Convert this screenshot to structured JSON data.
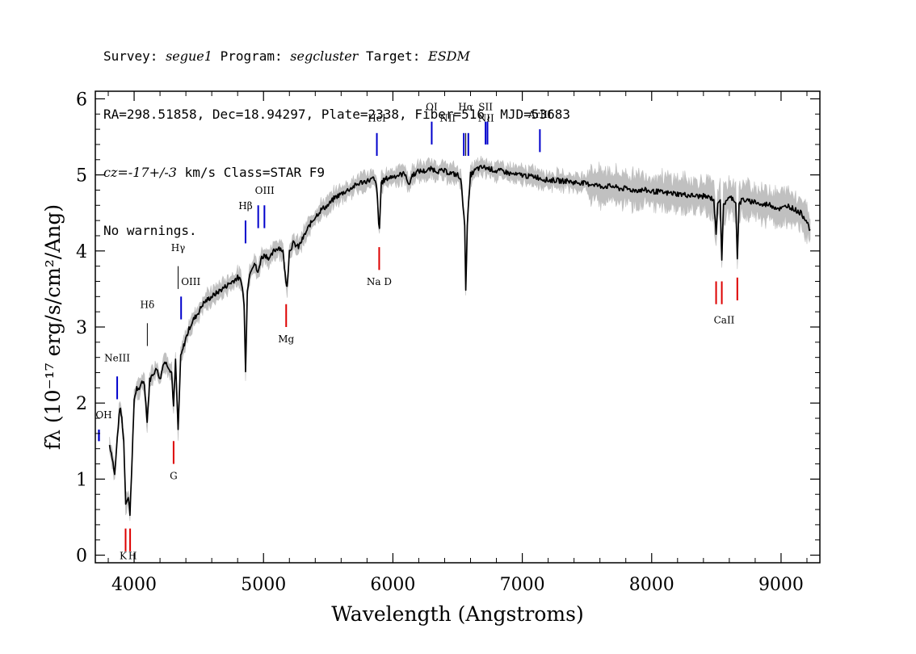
{
  "header": {
    "line1": {
      "p1": "Survey: ",
      "survey": "segue1",
      "p2": " Program: ",
      "program": "segcluster",
      "p3": " Target: ",
      "target": "ESDM"
    },
    "line2": "RA=298.51858, Dec=18.94297, Plate=2338, Fiber=516, MJD=53683",
    "line3": {
      "cz": "cz=-17+/-3",
      "rest": " km/s Class=STAR F9"
    },
    "line4": "No warnings."
  },
  "chart_data": {
    "type": "line",
    "xlabel": "Wavelength (Angstroms)",
    "ylabel": "fλ (10⁻¹⁷ erg/s/cm²/Ang)",
    "xlim": [
      3700,
      9300
    ],
    "ylim": [
      -0.1,
      6.1
    ],
    "x_ticks": [
      4000,
      5000,
      6000,
      7000,
      8000,
      9000
    ],
    "y_ticks": [
      0,
      1,
      2,
      3,
      4,
      5,
      6
    ],
    "grid": false,
    "colors": {
      "spectrum": "#000000",
      "error_band": "#c0c0c0",
      "emission": "#0000cc",
      "absorption": "#dd0000",
      "other": "#000000"
    },
    "series": [
      {
        "points": [
          [
            3810,
            1.45
          ],
          [
            3830,
            1.3
          ],
          [
            3850,
            1.05
          ],
          [
            3870,
            1.55
          ],
          [
            3890,
            1.95
          ],
          [
            3905,
            1.8
          ],
          [
            3920,
            1.5
          ],
          [
            3935,
            0.7
          ],
          [
            3955,
            0.75
          ],
          [
            3968,
            0.55
          ],
          [
            3985,
            1.3
          ],
          [
            4000,
            2.05
          ],
          [
            4020,
            2.2
          ],
          [
            4040,
            2.15
          ],
          [
            4060,
            2.3
          ],
          [
            4080,
            2.25
          ],
          [
            4101,
            1.75
          ],
          [
            4120,
            2.3
          ],
          [
            4150,
            2.4
          ],
          [
            4180,
            2.45
          ],
          [
            4200,
            2.3
          ],
          [
            4230,
            2.55
          ],
          [
            4260,
            2.5
          ],
          [
            4290,
            2.4
          ],
          [
            4305,
            1.95
          ],
          [
            4320,
            2.55
          ],
          [
            4340,
            1.65
          ],
          [
            4360,
            2.6
          ],
          [
            4383,
            2.75
          ],
          [
            4400,
            2.85
          ],
          [
            4430,
            3.0
          ],
          [
            4460,
            3.1
          ],
          [
            4500,
            3.2
          ],
          [
            4530,
            3.3
          ],
          [
            4560,
            3.35
          ],
          [
            4600,
            3.4
          ],
          [
            4640,
            3.45
          ],
          [
            4680,
            3.5
          ],
          [
            4720,
            3.55
          ],
          [
            4760,
            3.6
          ],
          [
            4800,
            3.65
          ],
          [
            4830,
            3.6
          ],
          [
            4850,
            3.3
          ],
          [
            4861,
            2.4
          ],
          [
            4875,
            3.5
          ],
          [
            4900,
            3.75
          ],
          [
            4930,
            3.85
          ],
          [
            4957,
            3.7
          ],
          [
            4980,
            3.9
          ],
          [
            5010,
            3.95
          ],
          [
            5050,
            3.9
          ],
          [
            5080,
            4.0
          ],
          [
            5120,
            4.05
          ],
          [
            5150,
            4.0
          ],
          [
            5172,
            3.6
          ],
          [
            5183,
            3.55
          ],
          [
            5200,
            4.0
          ],
          [
            5230,
            4.1
          ],
          [
            5270,
            4.05
          ],
          [
            5300,
            4.15
          ],
          [
            5330,
            4.25
          ],
          [
            5360,
            4.35
          ],
          [
            5400,
            4.45
          ],
          [
            5450,
            4.55
          ],
          [
            5500,
            4.6
          ],
          [
            5550,
            4.7
          ],
          [
            5600,
            4.75
          ],
          [
            5650,
            4.8
          ],
          [
            5700,
            4.85
          ],
          [
            5750,
            4.9
          ],
          [
            5800,
            4.92
          ],
          [
            5850,
            4.95
          ],
          [
            5875,
            4.85
          ],
          [
            5890,
            4.35
          ],
          [
            5896,
            4.3
          ],
          [
            5910,
            4.9
          ],
          [
            5950,
            4.95
          ],
          [
            6000,
            4.98
          ],
          [
            6050,
            5.0
          ],
          [
            6100,
            5.02
          ],
          [
            6120,
            4.85
          ],
          [
            6150,
            5.0
          ],
          [
            6200,
            5.05
          ],
          [
            6250,
            5.05
          ],
          [
            6300,
            5.08
          ],
          [
            6350,
            5.05
          ],
          [
            6400,
            5.05
          ],
          [
            6450,
            5.02
          ],
          [
            6500,
            5.0
          ],
          [
            6530,
            4.9
          ],
          [
            6555,
            4.3
          ],
          [
            6563,
            3.5
          ],
          [
            6575,
            4.35
          ],
          [
            6600,
            5.0
          ],
          [
            6650,
            5.08
          ],
          [
            6700,
            5.1
          ],
          [
            6750,
            5.08
          ],
          [
            6800,
            5.05
          ],
          [
            6850,
            5.05
          ],
          [
            6900,
            5.02
          ],
          [
            6950,
            5.0
          ],
          [
            7000,
            5.0
          ],
          [
            7050,
            4.98
          ],
          [
            7100,
            4.98
          ],
          [
            7150,
            4.95
          ],
          [
            7200,
            4.93
          ],
          [
            7250,
            4.93
          ],
          [
            7300,
            4.92
          ],
          [
            7350,
            4.92
          ],
          [
            7400,
            4.9
          ],
          [
            7450,
            4.9
          ],
          [
            7500,
            4.88
          ],
          [
            7550,
            4.88
          ],
          [
            7600,
            4.85
          ],
          [
            7650,
            4.85
          ],
          [
            7700,
            4.85
          ],
          [
            7750,
            4.82
          ],
          [
            7800,
            4.82
          ],
          [
            7850,
            4.8
          ],
          [
            7900,
            4.8
          ],
          [
            7950,
            4.8
          ],
          [
            8000,
            4.78
          ],
          [
            8050,
            4.78
          ],
          [
            8100,
            4.76
          ],
          [
            8150,
            4.76
          ],
          [
            8200,
            4.75
          ],
          [
            8250,
            4.74
          ],
          [
            8300,
            4.73
          ],
          [
            8350,
            4.72
          ],
          [
            8400,
            4.72
          ],
          [
            8450,
            4.7
          ],
          [
            8480,
            4.68
          ],
          [
            8498,
            4.2
          ],
          [
            8510,
            4.65
          ],
          [
            8530,
            4.68
          ],
          [
            8542,
            3.85
          ],
          [
            8555,
            4.6
          ],
          [
            8580,
            4.68
          ],
          [
            8620,
            4.7
          ],
          [
            8650,
            4.65
          ],
          [
            8662,
            3.9
          ],
          [
            8675,
            4.6
          ],
          [
            8700,
            4.68
          ],
          [
            8750,
            4.65
          ],
          [
            8800,
            4.65
          ],
          [
            8850,
            4.6
          ],
          [
            8900,
            4.62
          ],
          [
            8950,
            4.58
          ],
          [
            9000,
            4.55
          ],
          [
            9050,
            4.6
          ],
          [
            9100,
            4.55
          ],
          [
            9150,
            4.5
          ],
          [
            9200,
            4.4
          ],
          [
            9225,
            4.25
          ]
        ]
      }
    ],
    "lines": [
      {
        "label": "OH",
        "wave": 3727,
        "color": "blue",
        "y0": 1.5,
        "y1": 1.65,
        "label_y": 1.8,
        "anchor": "start",
        "dx": -4
      },
      {
        "label": "OH",
        "wave": 3729,
        "color": "blue",
        "y0": 1.5,
        "y1": 1.65,
        "label_y": null
      },
      {
        "label": "NeIII",
        "wave": 3869,
        "color": "blue",
        "y0": 2.05,
        "y1": 2.35,
        "label_y": 2.55
      },
      {
        "label": "Hδ",
        "wave": 4102,
        "color": "black",
        "y0": 2.75,
        "y1": 3.05,
        "label_y": 3.25
      },
      {
        "label": "Hγ",
        "wave": 4340,
        "color": "black",
        "y0": 3.5,
        "y1": 3.8,
        "label_y": 4.0
      },
      {
        "label": "OIII",
        "wave": 4363,
        "color": "blue",
        "y0": 3.1,
        "y1": 3.4,
        "label_y": 3.55,
        "anchor": "start",
        "dx": 0
      },
      {
        "label": "Hβ",
        "wave": 4861,
        "color": "blue",
        "y0": 4.1,
        "y1": 4.4,
        "label_y": 4.55
      },
      {
        "label": "OIII",
        "wave": 4959,
        "color": "blue",
        "y0": 4.3,
        "y1": 4.6,
        "label_y": 4.75,
        "anchor": "start",
        "dx": -4
      },
      {
        "label": "OIII",
        "wave": 5007,
        "color": "blue",
        "y0": 4.3,
        "y1": 4.6,
        "label_y": null
      },
      {
        "label": "HeI",
        "wave": 5876,
        "color": "blue",
        "y0": 5.25,
        "y1": 5.55,
        "label_y": 5.7
      },
      {
        "label": "OI",
        "wave": 6300,
        "color": "blue",
        "y0": 5.4,
        "y1": 5.7,
        "label_y": 5.85
      },
      {
        "label": "NII",
        "wave": 6548,
        "color": "blue",
        "y0": 5.25,
        "y1": 5.55,
        "label_y": 5.7,
        "dx": -20
      },
      {
        "label": "Hα",
        "wave": 6563,
        "color": "black",
        "y0": 5.25,
        "y1": 5.55,
        "label_y": 5.85
      },
      {
        "label": "NII",
        "wave": 6583,
        "color": "blue",
        "y0": 5.25,
        "y1": 5.55,
        "label_y": 5.7,
        "dx": 22
      },
      {
        "label": "SII",
        "wave": 6716,
        "color": "blue",
        "y0": 5.4,
        "y1": 5.7,
        "label_y": 5.85
      },
      {
        "label": "SII",
        "wave": 6731,
        "color": "blue",
        "y0": 5.4,
        "y1": 5.7,
        "label_y": null
      },
      {
        "label": "ArIII",
        "wave": 7136,
        "color": "blue",
        "y0": 5.3,
        "y1": 5.6,
        "label_y": 5.75
      },
      {
        "label": "K",
        "wave": 3934,
        "color": "red",
        "y0": 0.05,
        "y1": 0.35,
        "label_y": -0.05,
        "dx": -3
      },
      {
        "label": "H",
        "wave": 3969,
        "color": "red",
        "y0": 0.05,
        "y1": 0.35,
        "label_y": -0.05,
        "dx": 3
      },
      {
        "label": "G",
        "wave": 4305,
        "color": "red",
        "y0": 1.2,
        "y1": 1.5,
        "label_y": 1.0
      },
      {
        "label": "Mg",
        "wave": 5175,
        "color": "red",
        "y0": 3.0,
        "y1": 3.3,
        "label_y": 2.8
      },
      {
        "label": "Na D",
        "wave": 5894,
        "color": "red",
        "y0": 3.75,
        "y1": 4.05,
        "label_y": 3.55
      },
      {
        "label": "CaII",
        "wave": 8498,
        "color": "red",
        "y0": 3.3,
        "y1": 3.6,
        "label_y": 3.05,
        "dx": 10
      },
      {
        "label": "CaII",
        "wave": 8542,
        "color": "red",
        "y0": 3.3,
        "y1": 3.6,
        "label_y": null
      },
      {
        "label": "CaII",
        "wave": 8662,
        "color": "red",
        "y0": 3.35,
        "y1": 3.65,
        "label_y": null
      }
    ]
  }
}
